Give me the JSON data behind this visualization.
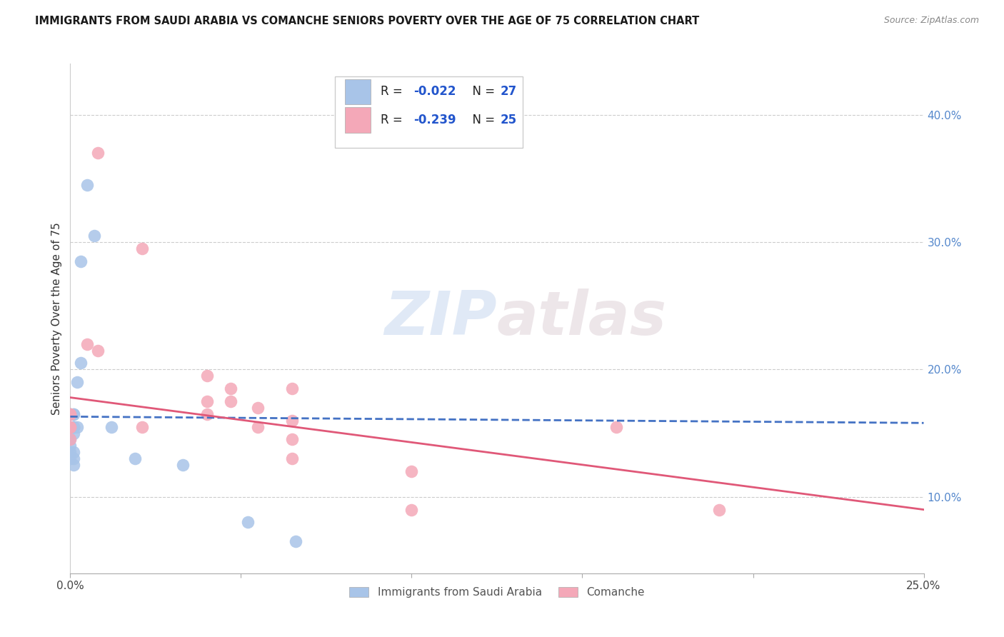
{
  "title": "IMMIGRANTS FROM SAUDI ARABIA VS COMANCHE SENIORS POVERTY OVER THE AGE OF 75 CORRELATION CHART",
  "source": "Source: ZipAtlas.com",
  "ylabel": "Seniors Poverty Over the Age of 75",
  "xlim": [
    0.0,
    0.25
  ],
  "ylim": [
    0.04,
    0.44
  ],
  "xticks": [
    0.0,
    0.05,
    0.1,
    0.15,
    0.2,
    0.25
  ],
  "xticklabels": [
    "0.0%",
    "",
    "",
    "",
    "",
    "25.0%"
  ],
  "yticks_right": [
    0.1,
    0.2,
    0.3,
    0.4
  ],
  "yticklabels_right": [
    "10.0%",
    "20.0%",
    "30.0%",
    "40.0%"
  ],
  "legend1_color": "#a8c4e8",
  "legend2_color": "#f4a8b8",
  "line1_color": "#4472c4",
  "line2_color": "#e05878",
  "watermark_zip": "ZIP",
  "watermark_atlas": "atlas",
  "legend_label_bottom1": "Immigrants from Saudi Arabia",
  "legend_label_bottom2": "Comanche",
  "blue_series_x": [
    0.005,
    0.007,
    0.003,
    0.003,
    0.002,
    0.002,
    0.001,
    0.001,
    0.001,
    0.001,
    0.001,
    0.0,
    0.0,
    0.0,
    0.0,
    0.0,
    0.0,
    0.0,
    0.012,
    0.019,
    0.033,
    0.052,
    0.066,
    0.001,
    0.001,
    0.001,
    0.001
  ],
  "blue_series_y": [
    0.345,
    0.305,
    0.285,
    0.205,
    0.19,
    0.155,
    0.165,
    0.165,
    0.155,
    0.135,
    0.125,
    0.165,
    0.165,
    0.155,
    0.145,
    0.14,
    0.135,
    0.13,
    0.155,
    0.13,
    0.125,
    0.08,
    0.065,
    0.155,
    0.155,
    0.15,
    0.13
  ],
  "pink_series_x": [
    0.008,
    0.005,
    0.021,
    0.021,
    0.04,
    0.04,
    0.04,
    0.047,
    0.047,
    0.055,
    0.055,
    0.065,
    0.065,
    0.065,
    0.1,
    0.16,
    0.19,
    0.0,
    0.0,
    0.0,
    0.0,
    0.0,
    0.008,
    0.065,
    0.1
  ],
  "pink_series_y": [
    0.37,
    0.22,
    0.295,
    0.155,
    0.195,
    0.175,
    0.165,
    0.185,
    0.175,
    0.17,
    0.155,
    0.185,
    0.16,
    0.13,
    0.12,
    0.155,
    0.09,
    0.165,
    0.165,
    0.155,
    0.155,
    0.145,
    0.215,
    0.145,
    0.09
  ],
  "line1_x": [
    0.0,
    0.25
  ],
  "line1_y": [
    0.163,
    0.158
  ],
  "line2_x": [
    0.0,
    0.25
  ],
  "line2_y": [
    0.178,
    0.09
  ]
}
